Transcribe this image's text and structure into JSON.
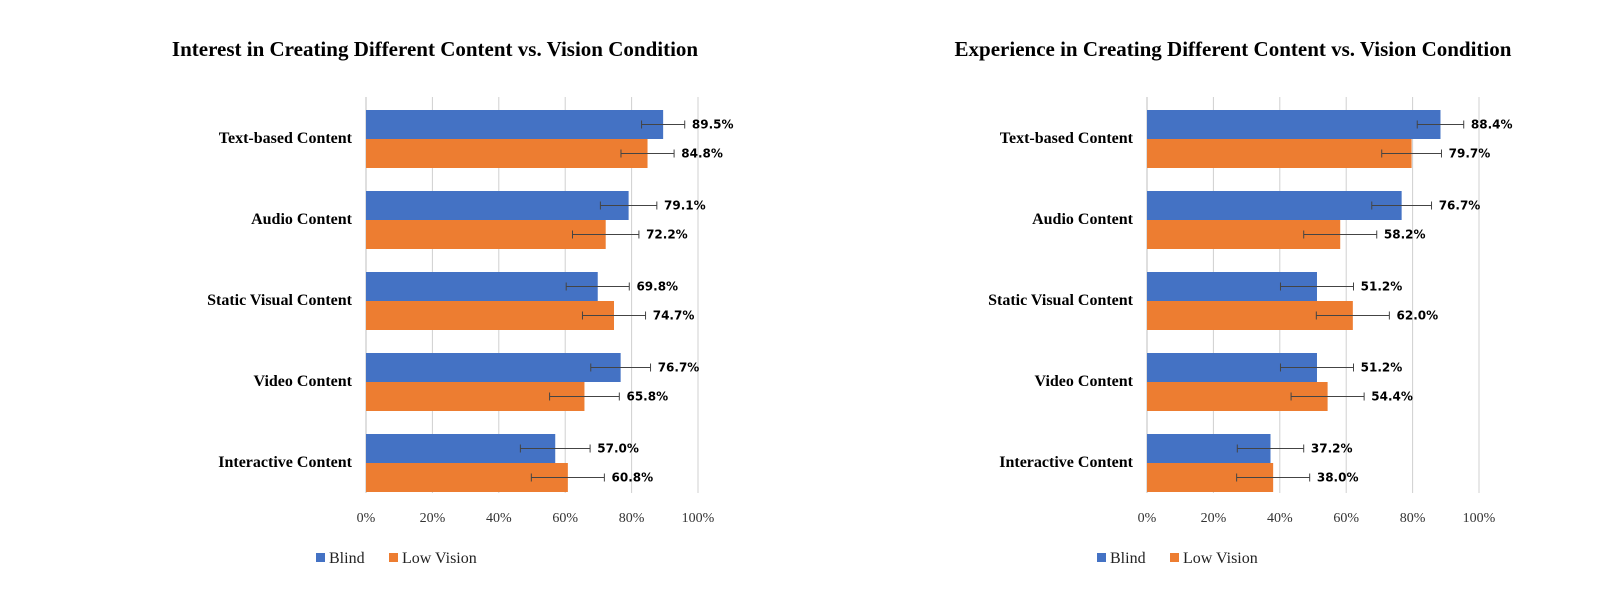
{
  "chart_data": [
    {
      "type": "bar",
      "orientation": "horizontal",
      "title": "Interest in Creating Different Content vs. Vision Condition",
      "categories": [
        "Text-based Content",
        "Audio Content",
        "Static Visual Content",
        "Video Content",
        "Interactive Content"
      ],
      "series": [
        {
          "name": "Blind",
          "color": "#4472c4",
          "values": [
            89.5,
            79.1,
            69.8,
            76.7,
            57.0
          ],
          "errors": [
            6.5,
            8.5,
            9.5,
            9.0,
            10.5
          ],
          "labels": [
            "89.5%",
            "79.1%",
            "69.8%",
            "76.7%",
            "57.0%"
          ]
        },
        {
          "name": "Low Vision",
          "color": "#ed7d31",
          "values": [
            84.8,
            72.2,
            74.7,
            65.8,
            60.8
          ],
          "errors": [
            8.0,
            10.0,
            9.5,
            10.5,
            11.0
          ],
          "labels": [
            "84.8%",
            "72.2%",
            "74.7%",
            "65.8%",
            "60.8%"
          ]
        }
      ],
      "xlim": [
        0,
        100
      ],
      "xticks": [
        "0%",
        "20%",
        "40%",
        "60%",
        "80%",
        "100%"
      ],
      "grid": true,
      "legend": "bottom"
    },
    {
      "type": "bar",
      "orientation": "horizontal",
      "title": "Experience in Creating Different Content vs. Vision Condition",
      "categories": [
        "Text-based Content",
        "Audio Content",
        "Static Visual Content",
        "Video Content",
        "Interactive Content"
      ],
      "series": [
        {
          "name": "Blind",
          "color": "#4472c4",
          "values": [
            88.4,
            76.7,
            51.2,
            51.2,
            37.2
          ],
          "errors": [
            7.0,
            9.0,
            11.0,
            11.0,
            10.0
          ],
          "labels": [
            "88.4%",
            "76.7%",
            "51.2%",
            "51.2%",
            "37.2%"
          ]
        },
        {
          "name": "Low Vision",
          "color": "#ed7d31",
          "values": [
            79.7,
            58.2,
            62.0,
            54.4,
            38.0
          ],
          "errors": [
            9.0,
            11.0,
            11.0,
            11.0,
            11.0
          ],
          "labels": [
            "79.7%",
            "58.2%",
            "62.0%",
            "54.4%",
            "38.0%"
          ]
        }
      ],
      "xlim": [
        0,
        100
      ],
      "xticks": [
        "0%",
        "20%",
        "40%",
        "60%",
        "80%",
        "100%"
      ],
      "grid": true,
      "legend": "bottom"
    }
  ]
}
